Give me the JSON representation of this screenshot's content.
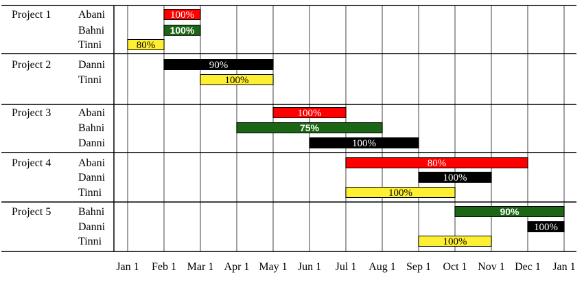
{
  "chart_data": {
    "type": "gantt",
    "x_ticks": [
      "Jan 1",
      "Feb 1",
      "Mar 1",
      "Apr 1",
      "May 1",
      "Jun 1",
      "Jul 1",
      "Aug 1",
      "Sep 1",
      "Oct 1",
      "Nov 1",
      "Dec 1",
      "Jan 1"
    ],
    "person_colors": {
      "Abani": "#ff0000",
      "Bahni": "#1a6614",
      "Tinni": "#ffef33",
      "Danni": "#000000"
    },
    "label_colors": {
      "Abani": "#ffffff",
      "Bahni": "#ffffff",
      "Tinni": "#000000",
      "Danni": "#ffffff"
    },
    "projects": [
      {
        "name": "Project 1",
        "tasks": [
          {
            "person": "Abani",
            "start": "Feb 1",
            "end": "Mar 1",
            "percent": "100%"
          },
          {
            "person": "Bahni",
            "start": "Feb 1",
            "end": "Mar 1",
            "percent": "100%"
          },
          {
            "person": "Tinni",
            "start": "Jan 1",
            "end": "Feb 1",
            "percent": "80%"
          }
        ]
      },
      {
        "name": "Project 2",
        "tasks": [
          {
            "person": "Danni",
            "start": "Feb 1",
            "end": "May 1",
            "percent": "90%"
          },
          {
            "person": "Tinni",
            "start": "Mar 1",
            "end": "May 1",
            "percent": "100%"
          }
        ]
      },
      {
        "name": "Project 3",
        "tasks": [
          {
            "person": "Abani",
            "start": "May 1",
            "end": "Jul 1",
            "percent": "100%"
          },
          {
            "person": "Bahni",
            "start": "Apr 1",
            "end": "Aug 1",
            "percent": "75%"
          },
          {
            "person": "Danni",
            "start": "Jun 1",
            "end": "Sep 1",
            "percent": "100%"
          }
        ]
      },
      {
        "name": "Project 4",
        "tasks": [
          {
            "person": "Abani",
            "start": "Jul 1",
            "end": "Dec 1",
            "percent": "80%"
          },
          {
            "person": "Danni",
            "start": "Sep 1",
            "end": "Nov 1",
            "percent": "100%"
          },
          {
            "person": "Tinni",
            "start": "Jul 1",
            "end": "Oct 1",
            "percent": "100%"
          }
        ]
      },
      {
        "name": "Project 5",
        "tasks": [
          {
            "person": "Bahni",
            "start": "Oct 1",
            "end": "Jan 1",
            "percent": "90%"
          },
          {
            "person": "Danni",
            "start": "Dec 1",
            "end": "Jan 1",
            "percent": "100%"
          },
          {
            "person": "Tinni",
            "start": "Sep 1",
            "end": "Nov 1",
            "percent": "100%"
          }
        ]
      }
    ]
  }
}
